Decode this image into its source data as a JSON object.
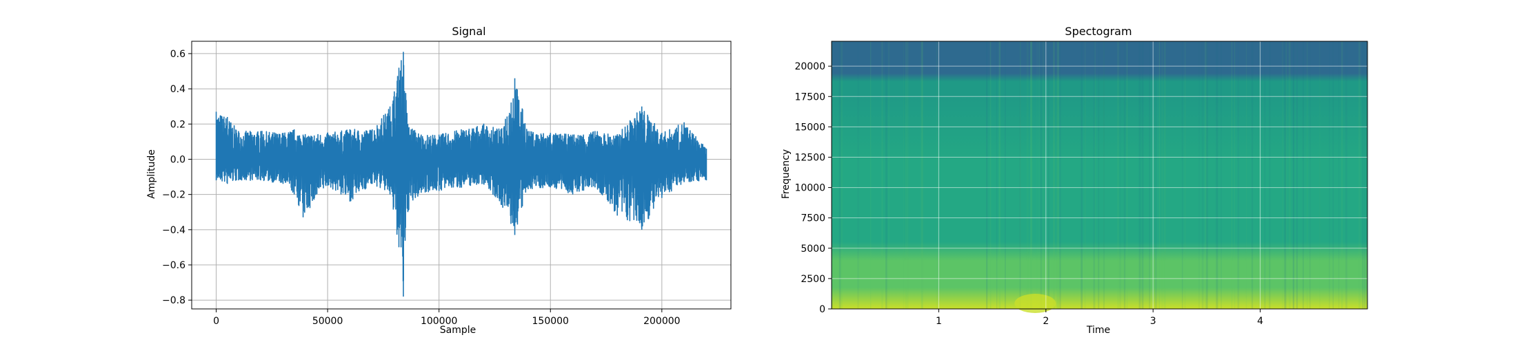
{
  "chart_data": [
    {
      "type": "line",
      "title": "Signal",
      "xlabel": "Sample",
      "ylabel": "Amplitude",
      "xlim": [
        -11000,
        231000
      ],
      "ylim": [
        -0.85,
        0.67
      ],
      "grid": true,
      "color": "#1f77b4",
      "x_ticks": [
        0,
        50000,
        100000,
        150000,
        200000
      ],
      "x_tick_labels": [
        "0",
        "50000",
        "100000",
        "150000",
        "200000"
      ],
      "y_ticks": [
        0.6,
        0.4,
        0.2,
        0.0,
        -0.2,
        -0.4,
        -0.6,
        -0.8
      ],
      "y_tick_labels": [
        "0.6",
        "0.4",
        "0.2",
        "0.0",
        "−0.2",
        "−0.4",
        "−0.6",
        "−0.8"
      ],
      "sample_count": 220500,
      "envelope": [
        {
          "x": 0,
          "min": -0.12,
          "max": 0.27
        },
        {
          "x": 5000,
          "min": -0.14,
          "max": 0.24
        },
        {
          "x": 10000,
          "min": -0.12,
          "max": 0.16
        },
        {
          "x": 20000,
          "min": -0.12,
          "max": 0.16
        },
        {
          "x": 30000,
          "min": -0.14,
          "max": 0.15
        },
        {
          "x": 35000,
          "min": -0.2,
          "max": 0.17
        },
        {
          "x": 39000,
          "min": -0.33,
          "max": 0.14
        },
        {
          "x": 50000,
          "min": -0.15,
          "max": 0.15
        },
        {
          "x": 60000,
          "min": -0.24,
          "max": 0.17
        },
        {
          "x": 70000,
          "min": -0.14,
          "max": 0.17
        },
        {
          "x": 78000,
          "min": -0.2,
          "max": 0.3
        },
        {
          "x": 82000,
          "min": -0.5,
          "max": 0.52
        },
        {
          "x": 84000,
          "min": -0.78,
          "max": 0.61
        },
        {
          "x": 86000,
          "min": -0.3,
          "max": 0.2
        },
        {
          "x": 92000,
          "min": -0.19,
          "max": 0.14
        },
        {
          "x": 100000,
          "min": -0.18,
          "max": 0.14
        },
        {
          "x": 110000,
          "min": -0.16,
          "max": 0.17
        },
        {
          "x": 120000,
          "min": -0.14,
          "max": 0.2
        },
        {
          "x": 128000,
          "min": -0.26,
          "max": 0.17
        },
        {
          "x": 134000,
          "min": -0.43,
          "max": 0.46
        },
        {
          "x": 140000,
          "min": -0.17,
          "max": 0.16
        },
        {
          "x": 150000,
          "min": -0.16,
          "max": 0.15
        },
        {
          "x": 160000,
          "min": -0.2,
          "max": 0.14
        },
        {
          "x": 170000,
          "min": -0.16,
          "max": 0.16
        },
        {
          "x": 180000,
          "min": -0.32,
          "max": 0.14
        },
        {
          "x": 191000,
          "min": -0.4,
          "max": 0.3
        },
        {
          "x": 200000,
          "min": -0.22,
          "max": 0.15
        },
        {
          "x": 210000,
          "min": -0.13,
          "max": 0.21
        },
        {
          "x": 220000,
          "min": -0.12,
          "max": 0.06
        }
      ]
    },
    {
      "type": "heatmap",
      "title": "Spectogram",
      "xlabel": "Time",
      "ylabel": "Frequency",
      "xlim": [
        0,
        5.0
      ],
      "ylim": [
        0,
        22050
      ],
      "grid": true,
      "colormap": "viridis",
      "x_ticks": [
        1,
        2,
        3,
        4
      ],
      "x_tick_labels": [
        "1",
        "2",
        "3",
        "4"
      ],
      "y_ticks": [
        0,
        2500,
        5000,
        7500,
        10000,
        12500,
        15000,
        17500,
        20000
      ],
      "y_tick_labels": [
        "0",
        "2500",
        "5000",
        "7500",
        "10000",
        "12500",
        "15000",
        "17500",
        "20000"
      ],
      "colors": {
        "above_cutoff": "#2e6a8f",
        "upper_band": "#1f9a86",
        "mid_band": "#24a884",
        "low_band": "#5cc466",
        "floor_band": "#c9df2a"
      }
    }
  ]
}
